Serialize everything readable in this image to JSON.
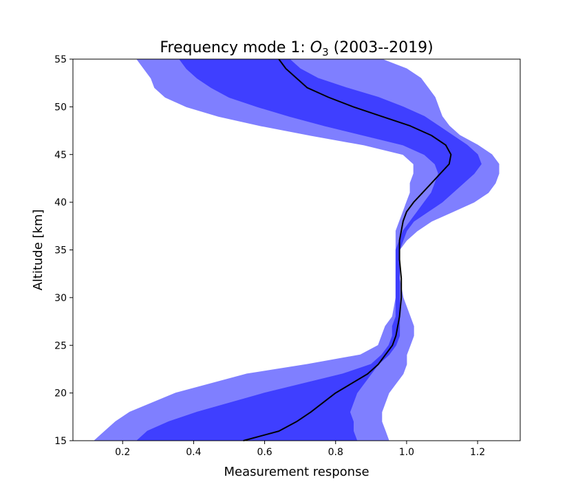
{
  "chart_data": {
    "type": "area",
    "title_prefix": "Frequency mode 1: ",
    "title_species": "O",
    "title_subscript": "3",
    "title_suffix": " (2003--2019)",
    "xlabel": "Measurement response",
    "ylabel": "Altitude [km]",
    "xlim": [
      0.06,
      1.32
    ],
    "ylim": [
      15,
      55
    ],
    "x_ticks": [
      0.2,
      0.4,
      0.6,
      0.8,
      1.0,
      1.2
    ],
    "x_tick_labels": [
      "0.2",
      "0.4",
      "0.6",
      "0.8",
      "1.0",
      "1.2"
    ],
    "y_ticks": [
      15,
      20,
      25,
      30,
      35,
      40,
      45,
      50,
      55
    ],
    "y_tick_labels": [
      "15",
      "20",
      "25",
      "30",
      "35",
      "40",
      "45",
      "50",
      "55"
    ],
    "grid": false,
    "altitude": [
      15,
      16,
      17,
      18,
      20,
      22,
      23,
      24,
      25,
      26,
      27,
      28,
      30,
      32,
      34,
      35,
      36,
      37,
      38,
      39,
      40,
      41,
      42,
      43,
      44,
      45,
      46,
      47,
      48,
      49,
      50,
      51,
      52,
      53,
      54,
      55
    ],
    "series": [
      {
        "role": "outer-band",
        "color": "#7f7fff",
        "lower": [
          0.12,
          0.15,
          0.18,
          0.22,
          0.35,
          0.55,
          0.72,
          0.87,
          0.92,
          0.93,
          0.94,
          0.96,
          0.97,
          0.97,
          0.97,
          0.97,
          0.97,
          0.97,
          0.98,
          0.99,
          1.0,
          1.01,
          1.01,
          1.02,
          1.02,
          0.99,
          0.88,
          0.73,
          0.59,
          0.47,
          0.38,
          0.32,
          0.29,
          0.28,
          0.26,
          0.24
        ],
        "upper": [
          0.95,
          0.94,
          0.93,
          0.93,
          0.95,
          0.99,
          1.0,
          1.0,
          1.01,
          1.02,
          1.02,
          1.01,
          0.99,
          0.98,
          0.98,
          0.98,
          1.0,
          1.03,
          1.07,
          1.13,
          1.19,
          1.23,
          1.25,
          1.26,
          1.26,
          1.24,
          1.2,
          1.15,
          1.12,
          1.1,
          1.09,
          1.08,
          1.06,
          1.04,
          1.0,
          0.93
        ]
      },
      {
        "role": "inner-band",
        "color": "#3f3fff",
        "lower": [
          0.24,
          0.27,
          0.33,
          0.41,
          0.6,
          0.82,
          0.9,
          0.93,
          0.95,
          0.96,
          0.96,
          0.97,
          0.97,
          0.97,
          0.97,
          0.97,
          0.98,
          0.99,
          1.01,
          1.03,
          1.05,
          1.07,
          1.08,
          1.09,
          1.08,
          1.05,
          0.99,
          0.88,
          0.77,
          0.67,
          0.58,
          0.5,
          0.45,
          0.41,
          0.38,
          0.36
        ],
        "upper": [
          0.86,
          0.85,
          0.85,
          0.84,
          0.86,
          0.9,
          0.92,
          0.95,
          0.97,
          0.98,
          0.98,
          0.98,
          0.98,
          0.98,
          0.98,
          0.98,
          0.99,
          1.0,
          1.02,
          1.06,
          1.1,
          1.13,
          1.16,
          1.19,
          1.21,
          1.2,
          1.17,
          1.13,
          1.09,
          1.05,
          0.99,
          0.92,
          0.83,
          0.75,
          0.7,
          0.67
        ]
      },
      {
        "role": "mean",
        "color": "#000000",
        "values": [
          0.54,
          0.64,
          0.69,
          0.73,
          0.8,
          0.89,
          0.92,
          0.94,
          0.96,
          0.97,
          0.975,
          0.98,
          0.985,
          0.985,
          0.98,
          0.98,
          0.98,
          0.985,
          0.99,
          1.0,
          1.02,
          1.045,
          1.07,
          1.095,
          1.12,
          1.125,
          1.11,
          1.07,
          1.01,
          0.93,
          0.85,
          0.78,
          0.72,
          0.69,
          0.66,
          0.64
        ]
      }
    ]
  }
}
